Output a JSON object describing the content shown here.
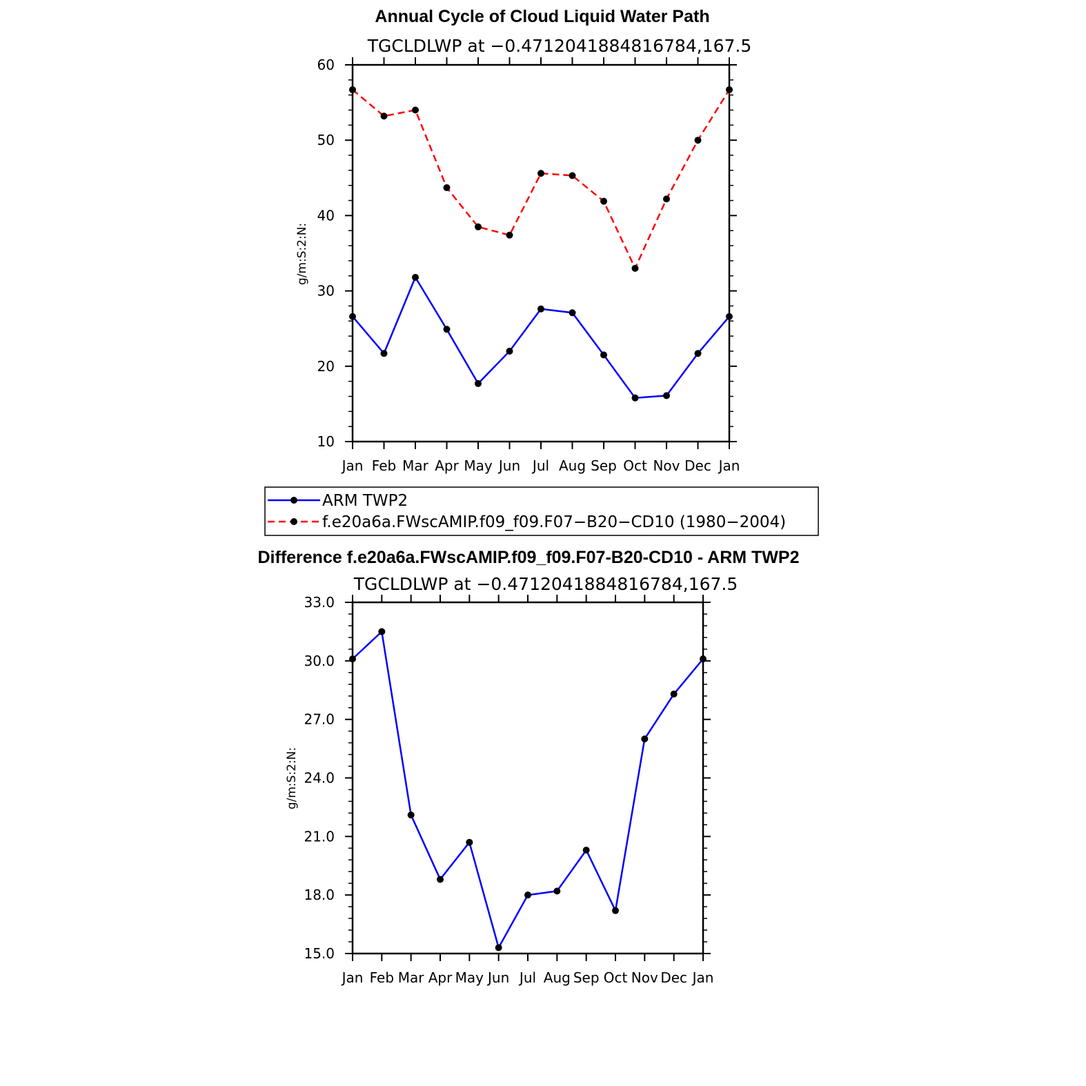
{
  "chart_data": [
    {
      "type": "line",
      "title": "Annual Cycle of Cloud Liquid Water Path",
      "subtitle": "TGCLDLWP at −0.4712041884816784,167.5",
      "ylabel": "g/m:S:2:N:",
      "ylim": [
        10,
        60
      ],
      "yticks": [
        "10",
        "20",
        "30",
        "40",
        "50",
        "60"
      ],
      "categories": [
        "Jan",
        "Feb",
        "Mar",
        "Apr",
        "May",
        "Jun",
        "Jul",
        "Aug",
        "Sep",
        "Oct",
        "Nov",
        "Dec",
        "Jan"
      ],
      "series": [
        {
          "name": "ARM TWP2",
          "color": "#0000ff",
          "style": "solid",
          "values": [
            26.6,
            21.7,
            31.8,
            24.9,
            17.7,
            22.0,
            27.6,
            27.1,
            21.5,
            15.8,
            16.1,
            21.7,
            26.6
          ]
        },
        {
          "name": "f.e20a6a.FWscAMIP.f09_f09.F07−B20−CD10 (1980−2004)",
          "color": "#ff0000",
          "style": "dashed",
          "values": [
            56.7,
            53.2,
            54.0,
            43.7,
            38.5,
            37.4,
            45.6,
            45.3,
            41.9,
            33.0,
            42.2,
            50.0,
            56.7
          ]
        }
      ],
      "legend": {
        "placement": "below",
        "entries": [
          "ARM TWP2",
          "f.e20a6a.FWscAMIP.f09_f09.F07−B20−CD10 (1980−2004)"
        ]
      }
    },
    {
      "type": "line",
      "title": "Difference f.e20a6a.FWscAMIP.f09_f09.F07-B20-CD10 - ARM TWP2",
      "subtitle": "TGCLDLWP at −0.4712041884816784,167.5",
      "ylabel": "g/m:S:2:N:",
      "ylim": [
        15,
        33
      ],
      "yticks": [
        "15.0",
        "18.0",
        "21.0",
        "24.0",
        "27.0",
        "30.0",
        "33.0"
      ],
      "categories": [
        "Jan",
        "Feb",
        "Mar",
        "Apr",
        "May",
        "Jun",
        "Jul",
        "Aug",
        "Sep",
        "Oct",
        "Nov",
        "Dec",
        "Jan"
      ],
      "series": [
        {
          "color": "#0000ff",
          "style": "solid",
          "values": [
            30.1,
            31.5,
            22.1,
            18.8,
            20.7,
            15.3,
            18.0,
            18.2,
            20.3,
            17.2,
            26.0,
            28.3,
            30.1
          ]
        }
      ]
    }
  ]
}
